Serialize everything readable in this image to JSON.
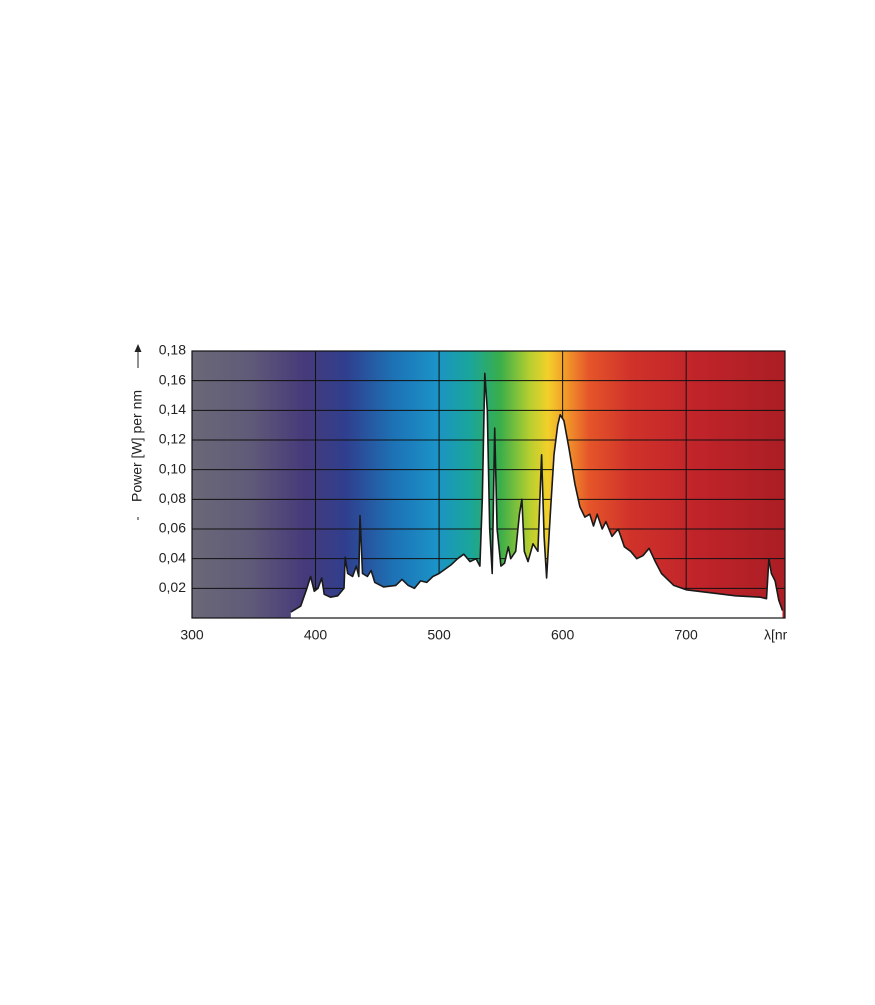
{
  "chart_data": {
    "type": "area",
    "y_label": "Power [W] per nm",
    "x_label": "λ[nm]",
    "xlim": [
      300,
      780
    ],
    "ylim": [
      0,
      0.18
    ],
    "xticks": [
      300,
      400,
      500,
      600,
      700
    ],
    "yticks": [
      {
        "value": 0.02,
        "label": "0,02"
      },
      {
        "value": 0.04,
        "label": "0,04"
      },
      {
        "value": 0.06,
        "label": "0,06"
      },
      {
        "value": 0.08,
        "label": "0,08"
      },
      {
        "value": 0.1,
        "label": "0,10"
      },
      {
        "value": 0.12,
        "label": "0,12"
      },
      {
        "value": 0.14,
        "label": "0,14"
      },
      {
        "value": 0.16,
        "label": "0,16"
      },
      {
        "value": 0.18,
        "label": "0,18"
      }
    ],
    "grid": true,
    "color": "#ffffff",
    "line_color": "#1a1a1a",
    "x": [
      380,
      388,
      393,
      396,
      399,
      402,
      405,
      407,
      412,
      418,
      423,
      424,
      426,
      430,
      433,
      435,
      436,
      438,
      442,
      445,
      448,
      455,
      465,
      470,
      475,
      480,
      485,
      490,
      495,
      500,
      505,
      510,
      515,
      520,
      525,
      530,
      533,
      535,
      537,
      539,
      541,
      543,
      545,
      547,
      550,
      553,
      556,
      558,
      562,
      565,
      567,
      569,
      572,
      576,
      580,
      583,
      585,
      587,
      590,
      593,
      596,
      598,
      601,
      605,
      610,
      614,
      618,
      622,
      625,
      628,
      632,
      635,
      640,
      645,
      650,
      655,
      660,
      665,
      670,
      675,
      680,
      690,
      700,
      710,
      720,
      740,
      760,
      765,
      767,
      769,
      772,
      775,
      778
    ],
    "values": [
      0.004,
      0.008,
      0.02,
      0.028,
      0.018,
      0.02,
      0.027,
      0.016,
      0.014,
      0.015,
      0.02,
      0.041,
      0.03,
      0.028,
      0.035,
      0.028,
      0.069,
      0.03,
      0.028,
      0.032,
      0.024,
      0.021,
      0.022,
      0.026,
      0.022,
      0.02,
      0.025,
      0.024,
      0.028,
      0.03,
      0.033,
      0.036,
      0.04,
      0.043,
      0.038,
      0.04,
      0.035,
      0.08,
      0.165,
      0.14,
      0.06,
      0.03,
      0.128,
      0.06,
      0.035,
      0.037,
      0.048,
      0.04,
      0.045,
      0.07,
      0.08,
      0.045,
      0.038,
      0.05,
      0.045,
      0.11,
      0.055,
      0.027,
      0.07,
      0.11,
      0.13,
      0.137,
      0.133,
      0.115,
      0.09,
      0.075,
      0.068,
      0.07,
      0.062,
      0.07,
      0.06,
      0.065,
      0.055,
      0.06,
      0.048,
      0.045,
      0.04,
      0.042,
      0.047,
      0.038,
      0.03,
      0.022,
      0.019,
      0.018,
      0.017,
      0.015,
      0.014,
      0.013,
      0.04,
      0.03,
      0.025,
      0.012,
      0.005
    ]
  }
}
